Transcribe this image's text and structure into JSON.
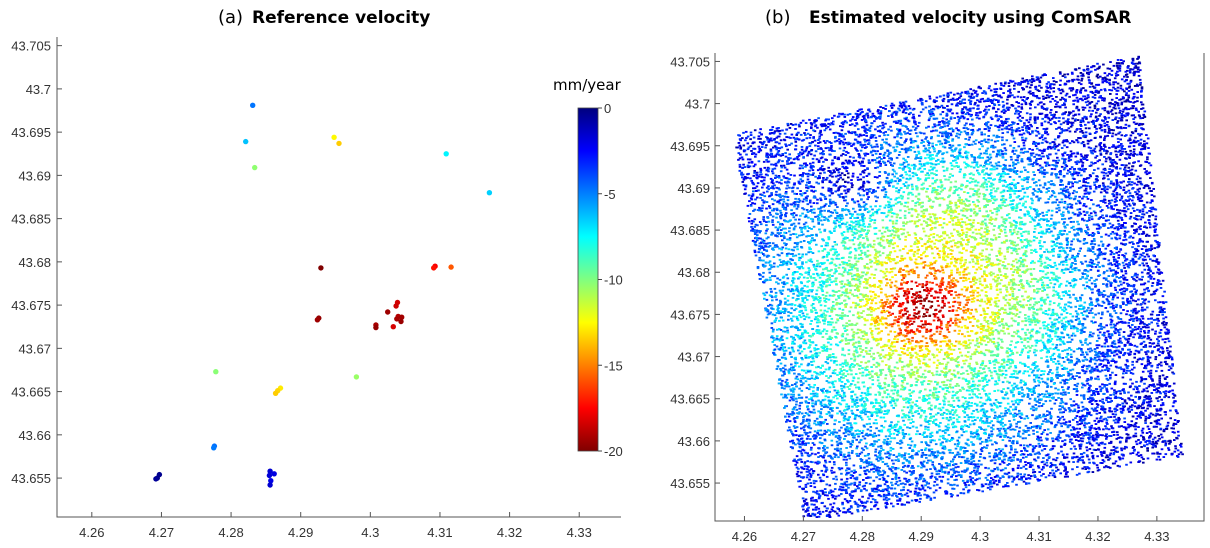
{
  "colormap": "jet",
  "chart_data": [
    {
      "type": "scatter",
      "panel_label": "(a)",
      "title": "Reference velocity",
      "xlabel": "",
      "ylabel": "",
      "xlim": [
        4.255,
        4.336
      ],
      "ylim": [
        43.6505,
        43.706
      ],
      "xticks": [
        "4.26",
        "4.27",
        "4.28",
        "4.29",
        "4.3",
        "4.31",
        "4.32",
        "4.33"
      ],
      "yticks": [
        "43.655",
        "43.66",
        "43.665",
        "43.67",
        "43.675",
        "43.68",
        "43.685",
        "43.69",
        "43.695",
        "43.7",
        "43.705"
      ],
      "grid": false,
      "points": [
        {
          "x": 4.2831,
          "y": 43.6981,
          "v": -4.8
        },
        {
          "x": 4.2821,
          "y": 43.6939,
          "v": -6.3
        },
        {
          "x": 4.2834,
          "y": 43.6909,
          "v": -10.3
        },
        {
          "x": 4.2948,
          "y": 43.6944,
          "v": -12.6
        },
        {
          "x": 4.2955,
          "y": 43.6937,
          "v": -13.5
        },
        {
          "x": 4.3109,
          "y": 43.6925,
          "v": -7.3
        },
        {
          "x": 4.3171,
          "y": 43.688,
          "v": -6.6
        },
        {
          "x": 4.2929,
          "y": 43.6793,
          "v": -20.0
        },
        {
          "x": 4.3093,
          "y": 43.6795,
          "v": -17.6
        },
        {
          "x": 4.3091,
          "y": 43.6793,
          "v": -17.2
        },
        {
          "x": 4.3116,
          "y": 43.6794,
          "v": -15.8
        },
        {
          "x": 4.2926,
          "y": 43.6735,
          "v": -19.6
        },
        {
          "x": 4.2924,
          "y": 43.6733,
          "v": -19.4
        },
        {
          "x": 4.3025,
          "y": 43.6742,
          "v": -19.4
        },
        {
          "x": 4.3039,
          "y": 43.6753,
          "v": -18.4
        },
        {
          "x": 4.3037,
          "y": 43.6749,
          "v": -18.5
        },
        {
          "x": 4.304,
          "y": 43.6737,
          "v": -19.0
        },
        {
          "x": 4.3045,
          "y": 43.6736,
          "v": -19.3
        },
        {
          "x": 4.3038,
          "y": 43.6734,
          "v": -19.2
        },
        {
          "x": 4.3044,
          "y": 43.6731,
          "v": -19.5
        },
        {
          "x": 4.3033,
          "y": 43.6725,
          "v": -18.3
        },
        {
          "x": 4.3008,
          "y": 43.6727,
          "v": -19.2
        },
        {
          "x": 4.3008,
          "y": 43.6724,
          "v": -19.6
        },
        {
          "x": 4.2778,
          "y": 43.6673,
          "v": -10.2
        },
        {
          "x": 4.298,
          "y": 43.6667,
          "v": -10.5
        },
        {
          "x": 4.2871,
          "y": 43.6654,
          "v": -12.9
        },
        {
          "x": 4.2867,
          "y": 43.6651,
          "v": -13.3
        },
        {
          "x": 4.2864,
          "y": 43.6648,
          "v": -13.5
        },
        {
          "x": 4.2776,
          "y": 43.6587,
          "v": -4.7
        },
        {
          "x": 4.2775,
          "y": 43.6585,
          "v": -4.9
        },
        {
          "x": 4.2697,
          "y": 43.6554,
          "v": -0.3
        },
        {
          "x": 4.2694,
          "y": 43.655,
          "v": -0.2
        },
        {
          "x": 4.2692,
          "y": 43.6549,
          "v": -0.5
        },
        {
          "x": 4.2856,
          "y": 43.6558,
          "v": -1.6
        },
        {
          "x": 4.2862,
          "y": 43.6555,
          "v": -1.9
        },
        {
          "x": 4.2855,
          "y": 43.6553,
          "v": -1.7
        },
        {
          "x": 4.2857,
          "y": 43.6547,
          "v": -2.0
        },
        {
          "x": 4.2856,
          "y": 43.6542,
          "v": -1.6
        }
      ],
      "colorbar": {
        "title": "mm/year",
        "range": [
          -20,
          0
        ],
        "ticks": [
          "0",
          "-5",
          "-10",
          "-15",
          "-20"
        ]
      }
    },
    {
      "type": "scatter",
      "panel_label": "(b)",
      "title": "Estimated velocity using ComSAR",
      "xlabel": "",
      "ylabel": "",
      "xlim": [
        4.255,
        4.338
      ],
      "ylim": [
        43.6505,
        43.706
      ],
      "xticks": [
        "4.26",
        "4.27",
        "4.28",
        "4.29",
        "4.3",
        "4.31",
        "4.32",
        "4.33"
      ],
      "yticks": [
        "43.655",
        "43.66",
        "43.665",
        "43.67",
        "43.675",
        "43.68",
        "43.685",
        "43.69",
        "43.695",
        "43.7",
        "43.705"
      ],
      "grid": false,
      "footprint_corners": [
        [
          4.2578,
          43.6965
        ],
        [
          4.3268,
          43.7058
        ],
        [
          4.3342,
          43.6582
        ],
        [
          4.27,
          43.6505
        ]
      ],
      "velocity_field": {
        "background": -1.5,
        "peaks": [
          {
            "x": 4.29,
            "y": 43.676,
            "v": -19.0
          },
          {
            "x": 4.296,
            "y": 43.688,
            "v": -15.5
          },
          {
            "x": 4.308,
            "y": 43.678,
            "v": -14.0
          }
        ],
        "low_blob": {
          "x": 4.278,
          "y": 43.691,
          "v": -1.5
        }
      }
    }
  ]
}
